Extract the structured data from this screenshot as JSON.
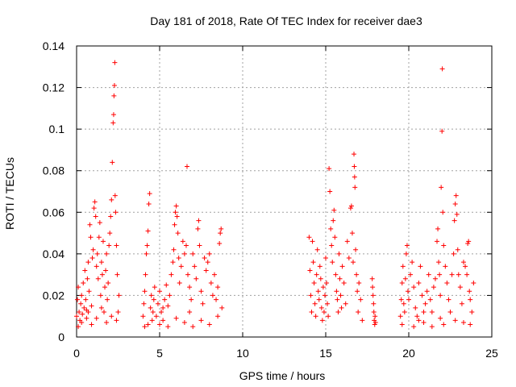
{
  "chart_data": {
    "type": "scatter",
    "title": "Day 181 of 2018, Rate Of TEC Index for receiver dae3",
    "xlabel": "GPS time / hours",
    "ylabel": "ROTI / TECUs",
    "xlim": [
      0,
      25
    ],
    "ylim": [
      0,
      0.14
    ],
    "grid": true,
    "x_ticks": [
      0,
      5,
      10,
      15,
      20,
      25
    ],
    "x_tick_labels": [
      "0",
      "5",
      "10",
      "15",
      "20",
      "25"
    ],
    "y_ticks": [
      0,
      0.02,
      0.04,
      0.06,
      0.08,
      0.1,
      0.12,
      0.14
    ],
    "y_tick_labels": [
      "0",
      "0.02",
      "0.04",
      "0.06",
      "0.08",
      "0.1",
      "0.12",
      "0.14"
    ],
    "marker": "plus",
    "color": "#ff0000",
    "series": [
      {
        "name": "ROTI",
        "points": [
          [
            0.0,
            0.01
          ],
          [
            0.05,
            0.018
          ],
          [
            0.1,
            0.024
          ],
          [
            0.15,
            0.012
          ],
          [
            0.2,
            0.008
          ],
          [
            0.25,
            0.016
          ],
          [
            0.3,
            0.02
          ],
          [
            0.35,
            0.011
          ],
          [
            0.4,
            0.026
          ],
          [
            0.45,
            0.014
          ],
          [
            0.5,
            0.032
          ],
          [
            0.55,
            0.018
          ],
          [
            0.6,
            0.009
          ],
          [
            0.65,
            0.028
          ],
          [
            0.7,
            0.036
          ],
          [
            0.75,
            0.022
          ],
          [
            0.8,
            0.054
          ],
          [
            0.85,
            0.048
          ],
          [
            0.9,
            0.015
          ],
          [
            0.95,
            0.038
          ],
          [
            1.0,
            0.042
          ],
          [
            1.05,
            0.062
          ],
          [
            1.1,
            0.065
          ],
          [
            1.15,
            0.058
          ],
          [
            1.2,
            0.034
          ],
          [
            1.25,
            0.04
          ],
          [
            1.3,
            0.028
          ],
          [
            1.35,
            0.048
          ],
          [
            1.4,
            0.055
          ],
          [
            1.45,
            0.02
          ],
          [
            1.5,
            0.036
          ],
          [
            1.55,
            0.03
          ],
          [
            1.6,
            0.046
          ],
          [
            1.65,
            0.012
          ],
          [
            1.7,
            0.024
          ],
          [
            1.75,
            0.032
          ],
          [
            1.8,
            0.04
          ],
          [
            1.85,
            0.018
          ],
          [
            1.9,
            0.026
          ],
          [
            1.95,
            0.044
          ],
          [
            2.0,
            0.05
          ],
          [
            2.05,
            0.058
          ],
          [
            2.1,
            0.066
          ],
          [
            2.15,
            0.084
          ],
          [
            2.2,
            0.103
          ],
          [
            2.23,
            0.107
          ],
          [
            2.25,
            0.116
          ],
          [
            2.28,
            0.121
          ],
          [
            2.3,
            0.132
          ],
          [
            2.32,
            0.068
          ],
          [
            2.35,
            0.06
          ],
          [
            2.4,
            0.044
          ],
          [
            2.45,
            0.03
          ],
          [
            2.5,
            0.012
          ],
          [
            2.55,
            0.02
          ],
          [
            0.1,
            0.005
          ],
          [
            0.3,
            0.007
          ],
          [
            0.6,
            0.013
          ],
          [
            0.9,
            0.006
          ],
          [
            1.2,
            0.009
          ],
          [
            1.5,
            0.014
          ],
          [
            1.8,
            0.007
          ],
          [
            2.1,
            0.01
          ],
          [
            2.4,
            0.008
          ],
          [
            0.7,
            0.012
          ],
          [
            4.0,
            0.01
          ],
          [
            4.05,
            0.016
          ],
          [
            4.1,
            0.022
          ],
          [
            4.15,
            0.03
          ],
          [
            4.2,
            0.04
          ],
          [
            4.25,
            0.044
          ],
          [
            4.3,
            0.051
          ],
          [
            4.35,
            0.064
          ],
          [
            4.4,
            0.069
          ],
          [
            4.45,
            0.014
          ],
          [
            4.5,
            0.02
          ],
          [
            4.55,
            0.008
          ],
          [
            4.6,
            0.012
          ],
          [
            4.65,
            0.018
          ],
          [
            4.7,
            0.024
          ],
          [
            4.3,
            0.006
          ],
          [
            4.1,
            0.005
          ],
          [
            4.8,
            0.01
          ],
          [
            4.9,
            0.016
          ],
          [
            5.0,
            0.022
          ],
          [
            5.1,
            0.012
          ],
          [
            5.2,
            0.008
          ],
          [
            5.3,
            0.018
          ],
          [
            5.4,
            0.025
          ],
          [
            5.5,
            0.015
          ],
          [
            5.6,
            0.02
          ],
          [
            5.7,
            0.03
          ],
          [
            5.8,
            0.036
          ],
          [
            5.85,
            0.042
          ],
          [
            5.9,
            0.054
          ],
          [
            5.95,
            0.06
          ],
          [
            6.0,
            0.063
          ],
          [
            6.05,
            0.058
          ],
          [
            6.1,
            0.05
          ],
          [
            6.15,
            0.038
          ],
          [
            6.2,
            0.026
          ],
          [
            6.3,
            0.034
          ],
          [
            6.4,
            0.046
          ],
          [
            6.5,
            0.04
          ],
          [
            6.6,
            0.044
          ],
          [
            6.65,
            0.082
          ],
          [
            6.7,
            0.03
          ],
          [
            6.8,
            0.024
          ],
          [
            6.9,
            0.018
          ],
          [
            7.0,
            0.04
          ],
          [
            7.1,
            0.034
          ],
          [
            7.2,
            0.028
          ],
          [
            7.3,
            0.052
          ],
          [
            7.35,
            0.056
          ],
          [
            7.4,
            0.044
          ],
          [
            7.5,
            0.022
          ],
          [
            7.6,
            0.016
          ],
          [
            7.7,
            0.038
          ],
          [
            7.8,
            0.032
          ],
          [
            7.9,
            0.036
          ],
          [
            8.0,
            0.04
          ],
          [
            8.1,
            0.026
          ],
          [
            8.2,
            0.02
          ],
          [
            8.3,
            0.03
          ],
          [
            8.4,
            0.018
          ],
          [
            8.5,
            0.024
          ],
          [
            8.6,
            0.045
          ],
          [
            8.65,
            0.05
          ],
          [
            8.7,
            0.052
          ],
          [
            8.75,
            0.014
          ],
          [
            5.0,
            0.006
          ],
          [
            5.5,
            0.005
          ],
          [
            6.0,
            0.009
          ],
          [
            6.5,
            0.007
          ],
          [
            7.0,
            0.005
          ],
          [
            7.5,
            0.008
          ],
          [
            8.0,
            0.006
          ],
          [
            8.5,
            0.01
          ],
          [
            5.2,
            0.014
          ],
          [
            6.8,
            0.012
          ],
          [
            14.0,
            0.048
          ],
          [
            14.05,
            0.032
          ],
          [
            14.1,
            0.02
          ],
          [
            14.15,
            0.012
          ],
          [
            14.2,
            0.046
          ],
          [
            14.25,
            0.036
          ],
          [
            14.3,
            0.026
          ],
          [
            14.35,
            0.016
          ],
          [
            14.4,
            0.01
          ],
          [
            14.45,
            0.03
          ],
          [
            14.5,
            0.042
          ],
          [
            14.55,
            0.022
          ],
          [
            14.6,
            0.018
          ],
          [
            14.65,
            0.034
          ],
          [
            14.7,
            0.028
          ],
          [
            14.75,
            0.014
          ],
          [
            14.8,
            0.008
          ],
          [
            14.85,
            0.024
          ],
          [
            14.9,
            0.012
          ],
          [
            14.95,
            0.02
          ],
          [
            15.0,
            0.038
          ],
          [
            15.05,
            0.026
          ],
          [
            15.1,
            0.016
          ],
          [
            15.15,
            0.01
          ],
          [
            15.2,
            0.081
          ],
          [
            15.25,
            0.07
          ],
          [
            15.3,
            0.052
          ],
          [
            15.35,
            0.044
          ],
          [
            15.4,
            0.036
          ],
          [
            15.45,
            0.056
          ],
          [
            15.5,
            0.061
          ],
          [
            15.55,
            0.048
          ],
          [
            15.6,
            0.03
          ],
          [
            15.65,
            0.022
          ],
          [
            15.7,
            0.018
          ],
          [
            15.75,
            0.012
          ],
          [
            15.8,
            0.04
          ],
          [
            15.85,
            0.028
          ],
          [
            15.9,
            0.02
          ],
          [
            15.95,
            0.014
          ],
          [
            16.0,
            0.034
          ],
          [
            16.1,
            0.026
          ],
          [
            16.2,
            0.016
          ],
          [
            16.3,
            0.046
          ],
          [
            16.4,
            0.038
          ],
          [
            16.5,
            0.062
          ],
          [
            16.55,
            0.063
          ],
          [
            16.6,
            0.05
          ],
          [
            16.65,
            0.036
          ],
          [
            16.7,
            0.088
          ],
          [
            16.72,
            0.082
          ],
          [
            16.74,
            0.077
          ],
          [
            16.76,
            0.072
          ],
          [
            16.8,
            0.042
          ],
          [
            16.85,
            0.03
          ],
          [
            16.9,
            0.022
          ],
          [
            16.95,
            0.012
          ],
          [
            17.0,
            0.026
          ],
          [
            17.1,
            0.018
          ],
          [
            17.2,
            0.008
          ],
          [
            17.8,
            0.028
          ],
          [
            17.82,
            0.024
          ],
          [
            17.85,
            0.02
          ],
          [
            17.88,
            0.016
          ],
          [
            17.9,
            0.012
          ],
          [
            17.92,
            0.008
          ],
          [
            17.95,
            0.006
          ],
          [
            17.97,
            0.01
          ],
          [
            18.0,
            0.007
          ],
          [
            19.5,
            0.01
          ],
          [
            19.55,
            0.018
          ],
          [
            19.6,
            0.026
          ],
          [
            19.65,
            0.034
          ],
          [
            19.7,
            0.016
          ],
          [
            19.75,
            0.012
          ],
          [
            19.8,
            0.028
          ],
          [
            19.85,
            0.04
          ],
          [
            19.9,
            0.044
          ],
          [
            19.95,
            0.022
          ],
          [
            20.0,
            0.018
          ],
          [
            20.1,
            0.03
          ],
          [
            20.2,
            0.036
          ],
          [
            20.3,
            0.024
          ],
          [
            20.4,
            0.014
          ],
          [
            20.5,
            0.01
          ],
          [
            20.6,
            0.026
          ],
          [
            20.7,
            0.034
          ],
          [
            20.8,
            0.02
          ],
          [
            20.9,
            0.012
          ],
          [
            21.0,
            0.016
          ],
          [
            21.1,
            0.022
          ],
          [
            21.2,
            0.03
          ],
          [
            21.3,
            0.018
          ],
          [
            21.4,
            0.012
          ],
          [
            21.5,
            0.024
          ],
          [
            21.6,
            0.028
          ],
          [
            21.7,
            0.046
          ],
          [
            21.75,
            0.052
          ],
          [
            21.8,
            0.036
          ],
          [
            21.85,
            0.03
          ],
          [
            21.9,
            0.02
          ],
          [
            21.95,
            0.072
          ],
          [
            22.0,
            0.099
          ],
          [
            22.02,
            0.129
          ],
          [
            22.05,
            0.06
          ],
          [
            22.1,
            0.044
          ],
          [
            22.2,
            0.034
          ],
          [
            22.3,
            0.026
          ],
          [
            22.4,
            0.018
          ],
          [
            22.5,
            0.012
          ],
          [
            22.6,
            0.03
          ],
          [
            22.7,
            0.04
          ],
          [
            22.75,
            0.056
          ],
          [
            22.8,
            0.064
          ],
          [
            22.85,
            0.068
          ],
          [
            22.9,
            0.059
          ],
          [
            22.95,
            0.042
          ],
          [
            23.0,
            0.03
          ],
          [
            23.1,
            0.024
          ],
          [
            23.2,
            0.016
          ],
          [
            23.3,
            0.036
          ],
          [
            23.4,
            0.034
          ],
          [
            23.5,
            0.03
          ],
          [
            23.55,
            0.045
          ],
          [
            23.6,
            0.046
          ],
          [
            23.65,
            0.022
          ],
          [
            23.7,
            0.018
          ],
          [
            23.8,
            0.012
          ],
          [
            23.9,
            0.026
          ],
          [
            19.6,
            0.006
          ],
          [
            20.3,
            0.005
          ],
          [
            20.9,
            0.007
          ],
          [
            21.4,
            0.005
          ],
          [
            22.1,
            0.006
          ],
          [
            22.8,
            0.008
          ],
          [
            23.3,
            0.007
          ],
          [
            23.7,
            0.006
          ],
          [
            21.9,
            0.009
          ],
          [
            20.6,
            0.008
          ]
        ]
      }
    ]
  }
}
